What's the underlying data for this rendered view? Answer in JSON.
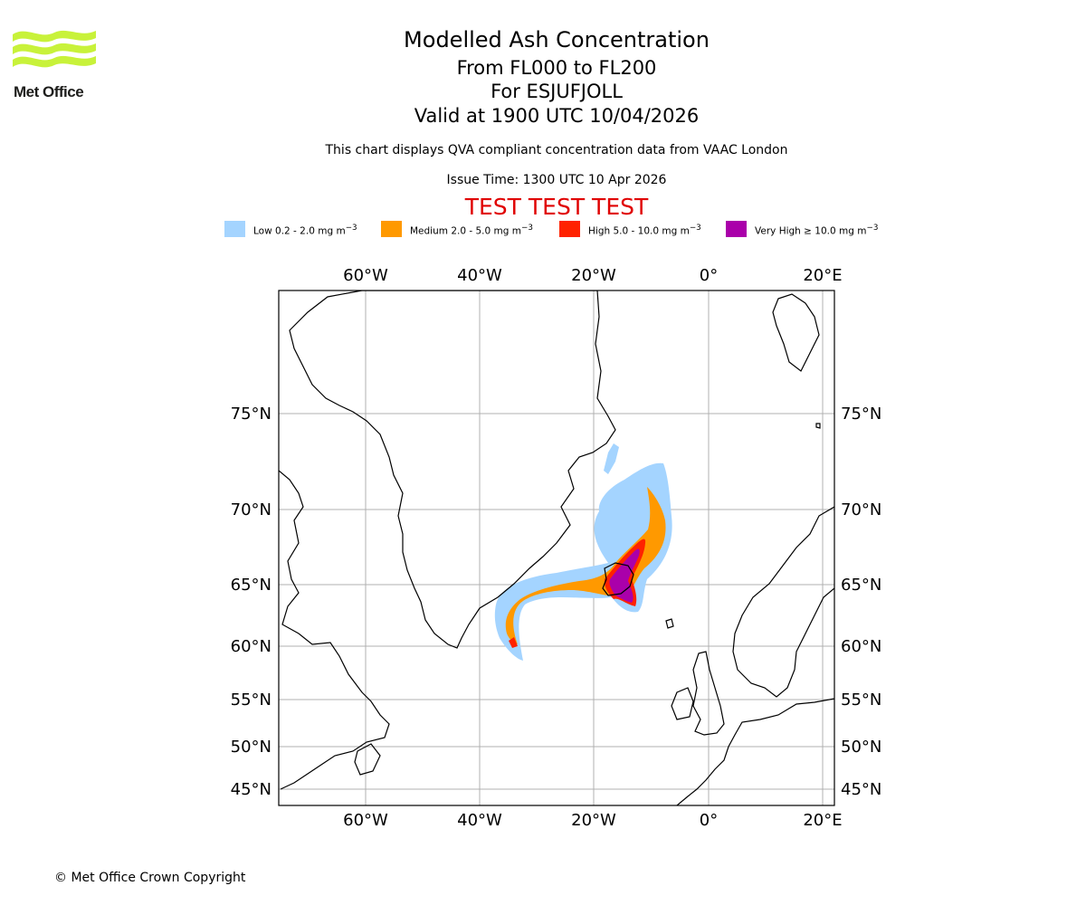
{
  "header": {
    "logo_text": "Met Office",
    "title": "Modelled Ash Concentration",
    "levels": "From FL000 to FL200",
    "volcano": "For ESJUFJOLL",
    "valid": "Valid at 1900 UTC 10/04/2026",
    "note": "This chart displays QVA compliant concentration data from VAAC London",
    "issue": "Issue Time: 1300 UTC 10 Apr 2026",
    "test_banner": "TEST TEST TEST"
  },
  "legend": [
    {
      "label": "Low 0.2 - 2.0 mg m",
      "color": "#a4d4ff"
    },
    {
      "label": "Medium 2.0 - 5.0 mg m",
      "color": "#ff9900"
    },
    {
      "label": "High 5.0 - 10.0 mg m",
      "color": "#ff2200"
    },
    {
      "label": "Very High ≥ 10.0 mg m",
      "color": "#aa00aa"
    }
  ],
  "legend_unit_exp": "−3",
  "map": {
    "lon_labels": [
      "60°W",
      "40°W",
      "20°W",
      "0°",
      "20°E"
    ],
    "lat_labels": [
      "75°N",
      "70°N",
      "65°N",
      "60°N",
      "55°N",
      "50°N",
      "45°N"
    ],
    "lon_range": [
      -75,
      22
    ],
    "lat_range": [
      43,
      80
    ]
  },
  "footer": {
    "copyright": "© Met Office Crown Copyright"
  }
}
